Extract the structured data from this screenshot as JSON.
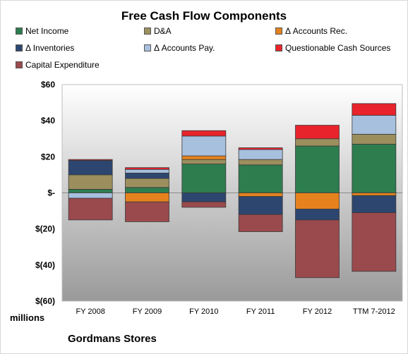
{
  "chart_data": {
    "type": "bar",
    "stacked": true,
    "title": "Free Cash Flow Components",
    "company": "Gordmans Stores",
    "units_label": "millions",
    "categories": [
      "FY 2008",
      "FY 2009",
      "FY 2010",
      "FY 2011",
      "FY 2012",
      "TTM 7-2012"
    ],
    "ylim": [
      -60,
      60
    ],
    "yticks": [
      60,
      40,
      20,
      0,
      -20,
      -40,
      -60
    ],
    "ytick_labels": [
      "$60",
      "$40",
      "$20",
      "$-",
      "$(20)",
      "$(40)",
      "$(60)"
    ],
    "legend_position": "top",
    "grid": false,
    "series": [
      {
        "name": "Net Income",
        "color": "#2e7d4f",
        "values": [
          2,
          3,
          16,
          15.5,
          26,
          27
        ]
      },
      {
        "name": "D&A",
        "color": "#9c8f5e",
        "values": [
          8,
          5,
          2.5,
          3,
          4,
          5.5
        ]
      },
      {
        "name": "Δ Accounts Rec.",
        "color": "#e5821d",
        "values": [
          0,
          -5,
          2,
          -2,
          -9,
          -1.5
        ]
      },
      {
        "name": "Δ Inventories",
        "color": "#2d4670",
        "values": [
          8,
          3,
          -5,
          -10,
          -6,
          -9.5
        ]
      },
      {
        "name": "Δ Accounts Pay.",
        "color": "#a7c0de",
        "values": [
          -3,
          2,
          11,
          5.5,
          0,
          10.5
        ]
      },
      {
        "name": "Questionable Cash Sources",
        "color": "#e8232b",
        "values": [
          0.5,
          1,
          3,
          1,
          7.5,
          6.5
        ]
      },
      {
        "name": "Capital Expenditure",
        "color": "#9a4a4d",
        "values": [
          -12,
          -11,
          -3,
          -9.5,
          -32,
          -32.5
        ]
      }
    ]
  }
}
